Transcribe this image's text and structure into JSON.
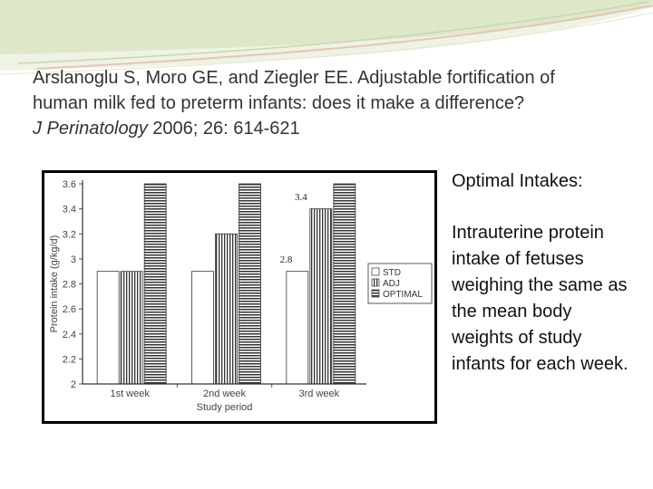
{
  "citation": {
    "line1": "Arslanoglu S, Moro GE, and Ziegler EE. Adjustable fortification of",
    "line2": "human milk fed to preterm infants: does it make a difference?",
    "journal": "J Perinatology",
    "details": " 2006; 26: 614-621"
  },
  "side_panel": {
    "heading": "Optimal Intakes:",
    "body": "Intrauterine protein intake of fetuses weighing the same as the mean body weights of study infants for each week."
  },
  "colors": {
    "swoosh_light": "#d9e5c2",
    "swoosh_accent": "#e6b8ad",
    "text": "#333333"
  },
  "chart_data": {
    "type": "bar",
    "title": "",
    "xlabel": "Study period",
    "ylabel": "Protein intake (g/kg/d)",
    "ylim": [
      2,
      3.6
    ],
    "yticks": [
      "2",
      "2.2",
      "2.4",
      "2.6",
      "2.8",
      "3",
      "3.2",
      "3.4",
      "3.6"
    ],
    "categories": [
      "1st week",
      "2nd week",
      "3rd week"
    ],
    "series": [
      {
        "name": "STD",
        "pattern": "white",
        "values": [
          2.9,
          2.9,
          2.9
        ]
      },
      {
        "name": "ADJ",
        "pattern": "vertical-stripes",
        "values": [
          2.9,
          3.2,
          3.4
        ]
      },
      {
        "name": "OPTIMAL",
        "pattern": "horizontal-stripes",
        "values": [
          3.6,
          3.6,
          3.6
        ]
      }
    ],
    "annotations": [
      "3.4",
      "2.8"
    ],
    "legend_position": "right",
    "grid": false
  }
}
